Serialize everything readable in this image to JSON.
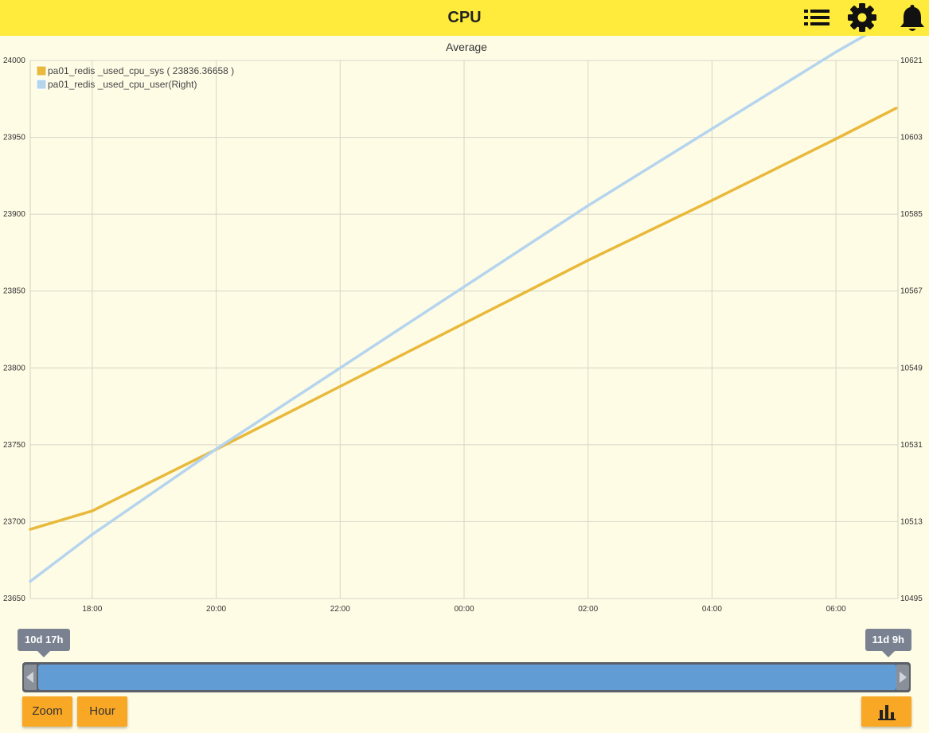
{
  "header": {
    "title": "CPU",
    "bg_color": "#ffeb3b",
    "icons": [
      "list-icon",
      "gear-icon",
      "bell-icon"
    ]
  },
  "range": {
    "start_label": "10d 17h",
    "end_label": "11d 9h"
  },
  "buttons": {
    "zoom": "Zoom",
    "hour": "Hour",
    "chart_icon": "bar-chart-icon"
  },
  "chart_data": {
    "type": "line",
    "title": "Average",
    "x_ticks": [
      "18:00",
      "20:00",
      "22:00",
      "00:00",
      "02:00",
      "04:00",
      "06:00"
    ],
    "x_tick_hours": [
      18,
      20,
      22,
      24,
      26,
      28,
      30
    ],
    "xlim_hours": [
      17.0,
      31.0
    ],
    "y_left": {
      "ylim": [
        23650,
        24000
      ],
      "ticks": [
        "24000",
        "23950",
        "23900",
        "23850",
        "23800",
        "23750",
        "23700",
        "23650"
      ]
    },
    "y_right": {
      "ylim": [
        10495,
        10621
      ],
      "ticks": [
        "10621",
        "10603",
        "10585",
        "10567",
        "10549",
        "10531",
        "10513",
        "10495"
      ]
    },
    "grid": true,
    "legend_position": "top-left",
    "series": [
      {
        "name": "pa01_redis _used_cpu_sys ( 23836.36658 )",
        "axis": "left",
        "color": "#e8b93a",
        "x_hours": [
          17.0,
          18.0,
          20.0,
          22.0,
          24.0,
          26.0,
          28.0,
          30.0,
          30.97
        ],
        "values": [
          23695,
          23707,
          23747,
          23788,
          23829,
          23870,
          23909,
          23949,
          23969
        ]
      },
      {
        "name": "pa01_redis _used_cpu_user(Right)",
        "axis": "right",
        "color": "#b5d4ee",
        "x_hours": [
          17.0,
          18.0,
          20.0,
          22.0,
          24.0,
          26.0,
          28.0,
          30.0,
          30.97
        ],
        "values": [
          10499,
          10510,
          10530,
          10549,
          10568,
          10587,
          10605,
          10623,
          10631
        ]
      }
    ]
  }
}
